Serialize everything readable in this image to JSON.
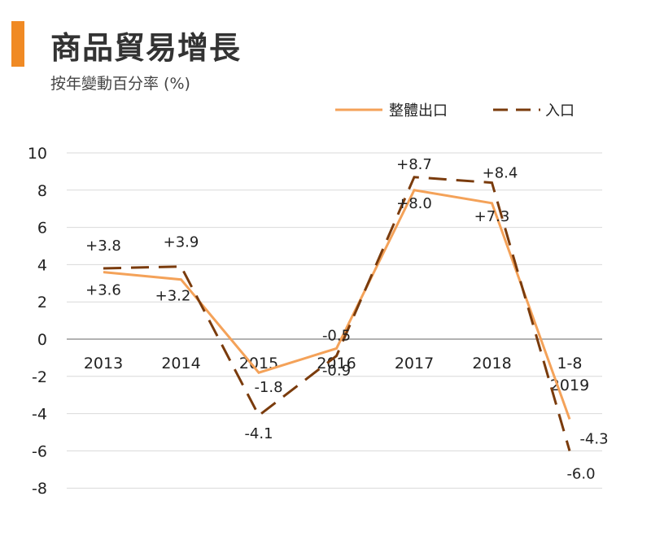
{
  "chart_data": {
    "type": "line",
    "title": "商品貿易增長",
    "subtitle": "按年變動百分率 (%)",
    "categories": [
      [
        "2013"
      ],
      [
        "2014"
      ],
      [
        "2015"
      ],
      [
        "2016"
      ],
      [
        "2017"
      ],
      [
        "2018"
      ],
      [
        "1-8",
        "2019"
      ]
    ],
    "series": [
      {
        "name": "整體出口",
        "color": "#f4a259",
        "dash": "solid",
        "values": [
          3.6,
          3.2,
          -1.8,
          -0.5,
          8.0,
          7.3,
          -4.3
        ],
        "labels": [
          "+3.6",
          "+3.2",
          "-1.8",
          "-0.5",
          "+8.0",
          "+7.3",
          "-4.3"
        ]
      },
      {
        "name": "入口",
        "color": "#7a3b0c",
        "dash": "dashed",
        "values": [
          3.8,
          3.9,
          -4.1,
          -0.9,
          8.7,
          8.4,
          -6.0
        ],
        "labels": [
          "+3.8",
          "+3.9",
          "-4.1",
          "-0.9",
          "+8.7",
          "+8.4",
          "-6.0"
        ]
      }
    ],
    "yticks": [
      10,
      8,
      6,
      4,
      2,
      0,
      -2,
      -4,
      -6,
      -8
    ],
    "ylim": [
      -8,
      10
    ],
    "grid": true,
    "legend": "top-right"
  },
  "colors": {
    "accent": "#f08a24",
    "grid": "#d9d9d9",
    "zero_line": "#999999"
  }
}
